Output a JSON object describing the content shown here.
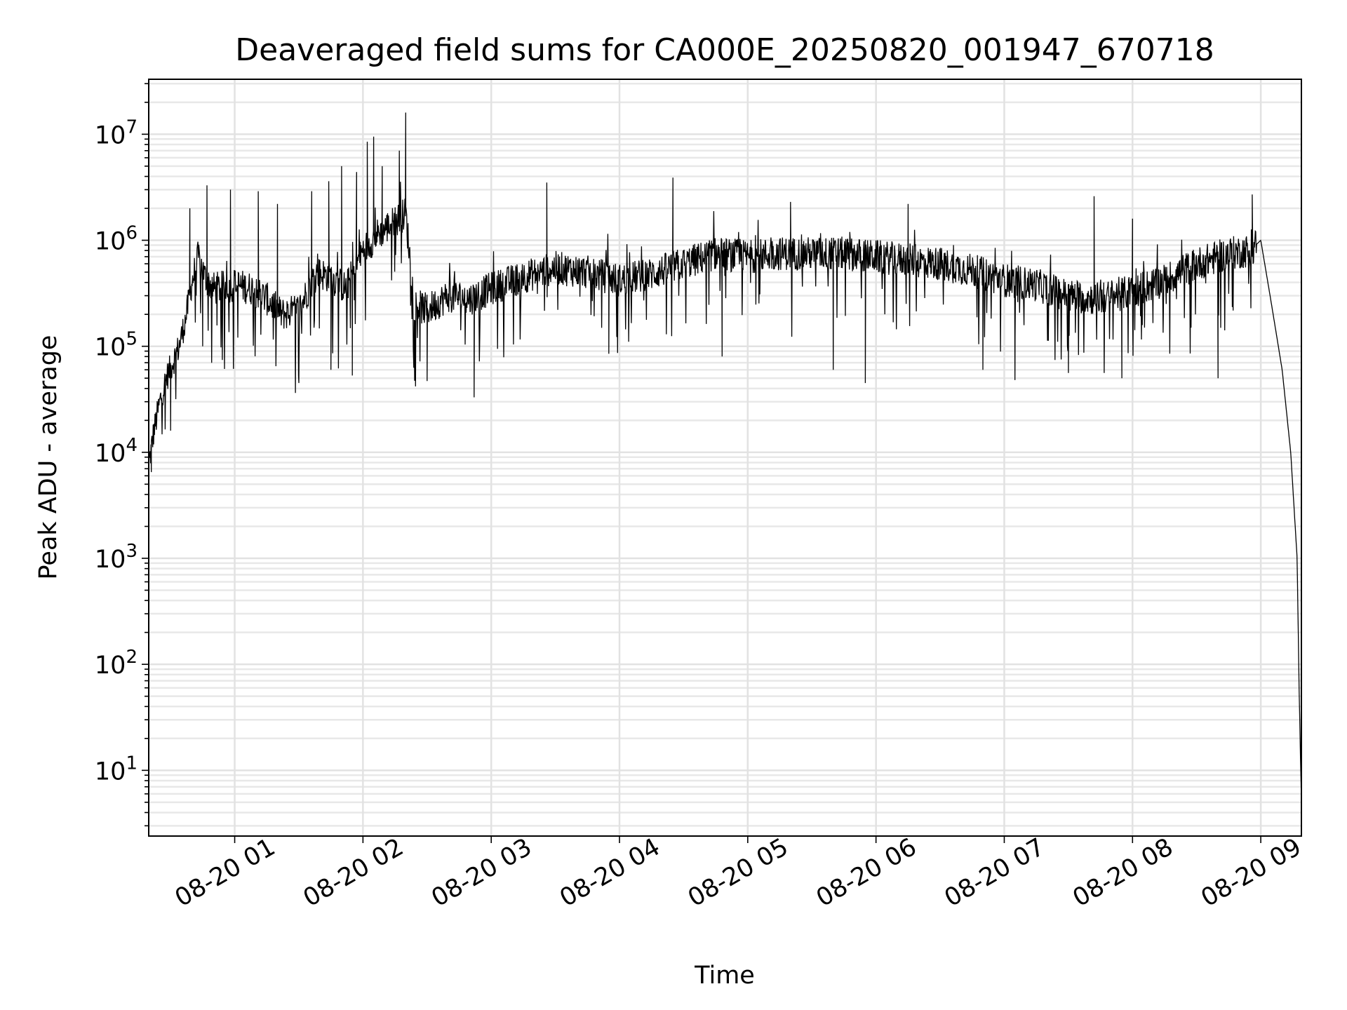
{
  "chart_data": {
    "type": "line",
    "title": "Deaveraged field sums for CA000E_20250820_001947_670718",
    "xlabel": "Time",
    "ylabel": "Peak ADU - average",
    "yscale": "log",
    "ylim": [
      2.4,
      33000000
    ],
    "xlim": [
      "08-20 00:19:47",
      "08-20 09:19:00"
    ],
    "x_ticks": [
      "08-20 01",
      "08-20 02",
      "08-20 03",
      "08-20 04",
      "08-20 05",
      "08-20 06",
      "08-20 07",
      "08-20 08",
      "08-20 09"
    ],
    "y_ticks": [
      {
        "base": "10",
        "exp": "1",
        "value": 10
      },
      {
        "base": "10",
        "exp": "2",
        "value": 100
      },
      {
        "base": "10",
        "exp": "3",
        "value": 1000
      },
      {
        "base": "10",
        "exp": "4",
        "value": 10000
      },
      {
        "base": "10",
        "exp": "5",
        "value": 100000
      },
      {
        "base": "10",
        "exp": "6",
        "value": 1000000
      },
      {
        "base": "10",
        "exp": "7",
        "value": 10000000
      }
    ],
    "grid": true,
    "line_color": "#000000",
    "series": [
      {
        "x": [
          "08-20 00:20",
          "08-20 00:22",
          "08-20 00:25",
          "08-20 00:28",
          "08-20 00:31",
          "08-20 00:34",
          "08-20 00:37",
          "08-20 00:40",
          "08-20 00:43",
          "08-20 00:46",
          "08-20 00:50",
          "08-20 00:55",
          "08-20 01:00",
          "08-20 01:08",
          "08-20 01:15",
          "08-20 01:22",
          "08-20 01:30",
          "08-20 01:38",
          "08-20 01:45",
          "08-20 01:52",
          "08-20 02:00",
          "08-20 02:08",
          "08-20 02:15",
          "08-20 02:20",
          "08-20 02:24",
          "08-20 02:30",
          "08-20 02:40",
          "08-20 02:50",
          "08-20 03:00",
          "08-20 03:15",
          "08-20 03:30",
          "08-20 03:45",
          "08-20 04:00",
          "08-20 04:15",
          "08-20 04:30",
          "08-20 04:45",
          "08-20 05:00",
          "08-20 05:15",
          "08-20 05:30",
          "08-20 05:45",
          "08-20 06:00",
          "08-20 06:15",
          "08-20 06:30",
          "08-20 06:45",
          "08-20 07:00",
          "08-20 07:15",
          "08-20 07:30",
          "08-20 07:45",
          "08-20 08:00",
          "08-20 08:15",
          "08-20 08:30",
          "08-20 08:45",
          "08-20 08:55",
          "08-20 09:00",
          "08-20 09:05",
          "08-20 09:10",
          "08-20 09:14",
          "08-20 09:17",
          "08-20 09:18",
          "08-20 09:19"
        ],
        "y": [
          8000,
          15000,
          30000,
          50000,
          70000,
          100000,
          180000,
          400000,
          700000,
          450000,
          350000,
          360000,
          380000,
          350000,
          280000,
          200000,
          220000,
          500000,
          450000,
          350000,
          800000,
          1200000,
          1500000,
          1800000,
          250000,
          220000,
          300000,
          280000,
          350000,
          450000,
          550000,
          500000,
          420000,
          480000,
          600000,
          750000,
          700000,
          750000,
          750000,
          750000,
          700000,
          650000,
          600000,
          520000,
          420000,
          380000,
          300000,
          280000,
          330000,
          420000,
          600000,
          750000,
          800000,
          1000000,
          250000,
          60000,
          10000,
          1000,
          50,
          5
        ]
      }
    ],
    "spikes": [
      {
        "x": "08-20 00:39",
        "y": 2000000
      },
      {
        "x": "08-20 00:47",
        "y": 3300000
      },
      {
        "x": "08-20 00:58",
        "y": 3000000
      },
      {
        "x": "08-20 01:11",
        "y": 2900000
      },
      {
        "x": "08-20 01:20",
        "y": 2200000
      },
      {
        "x": "08-20 01:36",
        "y": 2900000
      },
      {
        "x": "08-20 01:44",
        "y": 3600000
      },
      {
        "x": "08-20 01:50",
        "y": 5000000
      },
      {
        "x": "08-20 01:57",
        "y": 4400000
      },
      {
        "x": "08-20 02:02",
        "y": 8500000
      },
      {
        "x": "08-20 02:05",
        "y": 9500000
      },
      {
        "x": "08-20 02:09",
        "y": 5000000
      },
      {
        "x": "08-20 02:17",
        "y": 7000000
      },
      {
        "x": "08-20 02:20",
        "y": 16000000
      },
      {
        "x": "08-20 03:26",
        "y": 3500000
      },
      {
        "x": "08-20 04:25",
        "y": 3900000
      },
      {
        "x": "08-20 05:20",
        "y": 2300000
      },
      {
        "x": "08-20 06:15",
        "y": 2200000
      },
      {
        "x": "08-20 07:42",
        "y": 2600000
      },
      {
        "x": "08-20 08:00",
        "y": 1600000
      },
      {
        "x": "08-20 08:56",
        "y": 2700000
      }
    ],
    "dips": [
      {
        "x": "08-20 00:21",
        "y": 6500
      },
      {
        "x": "08-20 00:30",
        "y": 16000
      },
      {
        "x": "08-20 00:45",
        "y": 100000
      },
      {
        "x": "08-20 01:30",
        "y": 45000
      },
      {
        "x": "08-20 01:45",
        "y": 60000
      },
      {
        "x": "08-20 01:55",
        "y": 53000
      },
      {
        "x": "08-20 02:30",
        "y": 47000
      },
      {
        "x": "08-20 02:52",
        "y": 33000
      },
      {
        "x": "08-20 03:55",
        "y": 85000
      },
      {
        "x": "08-20 04:48",
        "y": 80000
      },
      {
        "x": "08-20 05:40",
        "y": 60000
      },
      {
        "x": "08-20 05:55",
        "y": 45000
      },
      {
        "x": "08-20 06:50",
        "y": 60000
      },
      {
        "x": "08-20 07:05",
        "y": 48000
      },
      {
        "x": "08-20 07:30",
        "y": 56000
      },
      {
        "x": "08-20 07:55",
        "y": 50000
      },
      {
        "x": "08-20 08:40",
        "y": 50000
      }
    ]
  }
}
